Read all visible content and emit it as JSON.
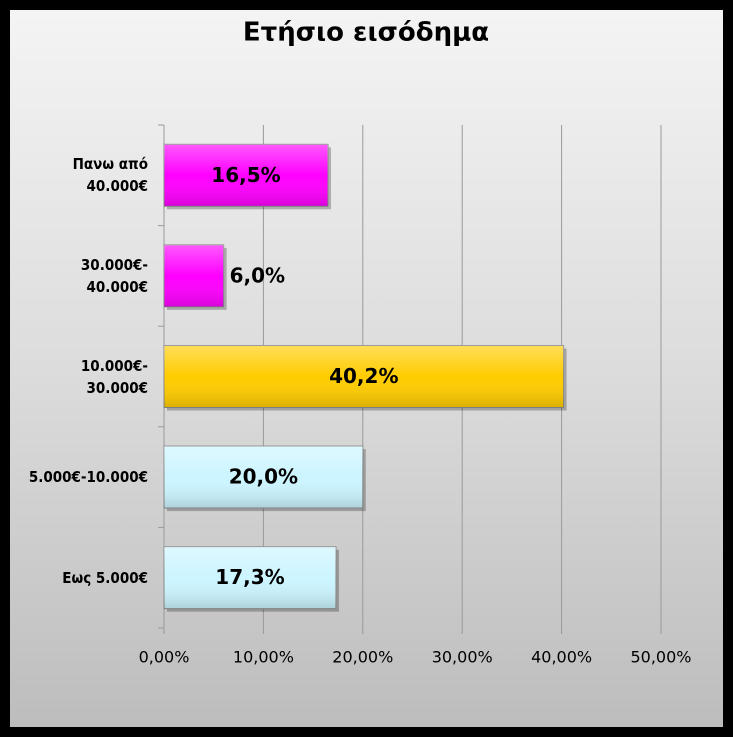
{
  "chart_data": {
    "type": "bar",
    "orientation": "horizontal",
    "title": "Ετήσιο εισόδημα",
    "categories": [
      "Πανω από\n40.000€",
      "30.000€-\n40.000€",
      "10.000€-\n30.000€",
      "5.000€-10.000€",
      "Εως 5.000€"
    ],
    "values": [
      16.5,
      6.0,
      40.2,
      20.0,
      17.3
    ],
    "value_labels": [
      "16,5%",
      "6,0%",
      "40,2%",
      "20,0%",
      "17,3%"
    ],
    "colors": [
      "#ff00ff",
      "#ff00ff",
      "#ffcc00",
      "#ccf5ff",
      "#ccf5ff"
    ],
    "xlim": [
      0,
      50
    ],
    "xticks": [
      {
        "value": 0,
        "label": "0,00%"
      },
      {
        "value": 10,
        "label": "10,00%"
      },
      {
        "value": 20,
        "label": "20,00%"
      },
      {
        "value": 30,
        "label": "30,00%"
      },
      {
        "value": 40,
        "label": "40,00%"
      },
      {
        "value": 50,
        "label": "50,00%"
      }
    ],
    "grid": true
  }
}
